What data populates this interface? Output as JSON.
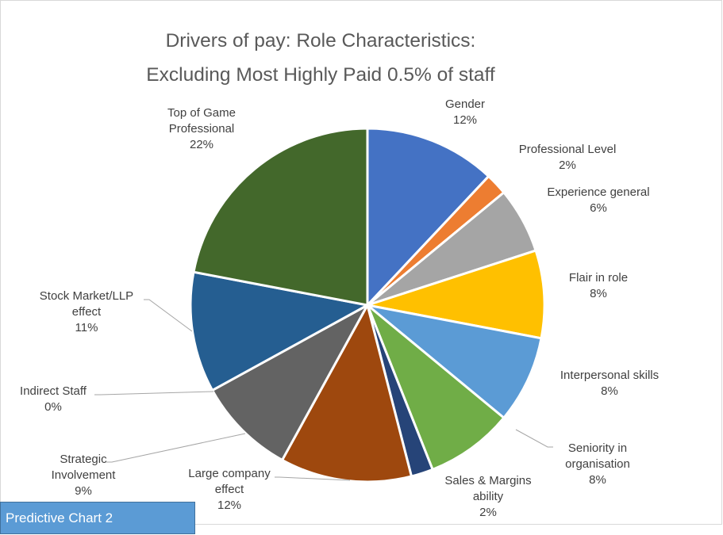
{
  "chart_data": {
    "type": "pie",
    "title_lines": [
      "Drivers of pay: Role Characteristics:",
      "Excluding Most Highly Paid 0.5% of staff"
    ],
    "slices": [
      {
        "label_lines": [
          "Gender"
        ],
        "pct_label": "12%",
        "value": 12,
        "color": "#4472c4"
      },
      {
        "label_lines": [
          "Professional Level"
        ],
        "pct_label": "2%",
        "value": 2,
        "color": "#ed7d31"
      },
      {
        "label_lines": [
          "Experience general"
        ],
        "pct_label": "6%",
        "value": 6,
        "color": "#a5a5a5"
      },
      {
        "label_lines": [
          "Flair in role"
        ],
        "pct_label": "8%",
        "value": 8,
        "color": "#ffc000"
      },
      {
        "label_lines": [
          "Interpersonal skills"
        ],
        "pct_label": "8%",
        "value": 8,
        "color": "#5b9bd5"
      },
      {
        "label_lines": [
          "Seniority in",
          "organisation"
        ],
        "pct_label": "8%",
        "value": 8,
        "color": "#70ad47"
      },
      {
        "label_lines": [
          "Sales & Margins",
          "ability"
        ],
        "pct_label": "2%",
        "value": 2,
        "color": "#264478"
      },
      {
        "label_lines": [
          "Large company",
          "effect"
        ],
        "pct_label": "12%",
        "value": 12,
        "color": "#9e480e"
      },
      {
        "label_lines": [
          "Strategic",
          "Involvement"
        ],
        "pct_label": "9%",
        "value": 9,
        "color": "#636363"
      },
      {
        "label_lines": [
          "Indirect Staff"
        ],
        "pct_label": "0%",
        "value": 0,
        "color": "#997300"
      },
      {
        "label_lines": [
          "Stock Market/LLP",
          "effect"
        ],
        "pct_label": "11%",
        "value": 11,
        "color": "#255e91"
      },
      {
        "label_lines": [
          "Top of Game",
          "Professional"
        ],
        "pct_label": "22%",
        "value": 22,
        "color": "#43682b"
      }
    ]
  },
  "badge": {
    "text": "Predictive Chart  2"
  }
}
